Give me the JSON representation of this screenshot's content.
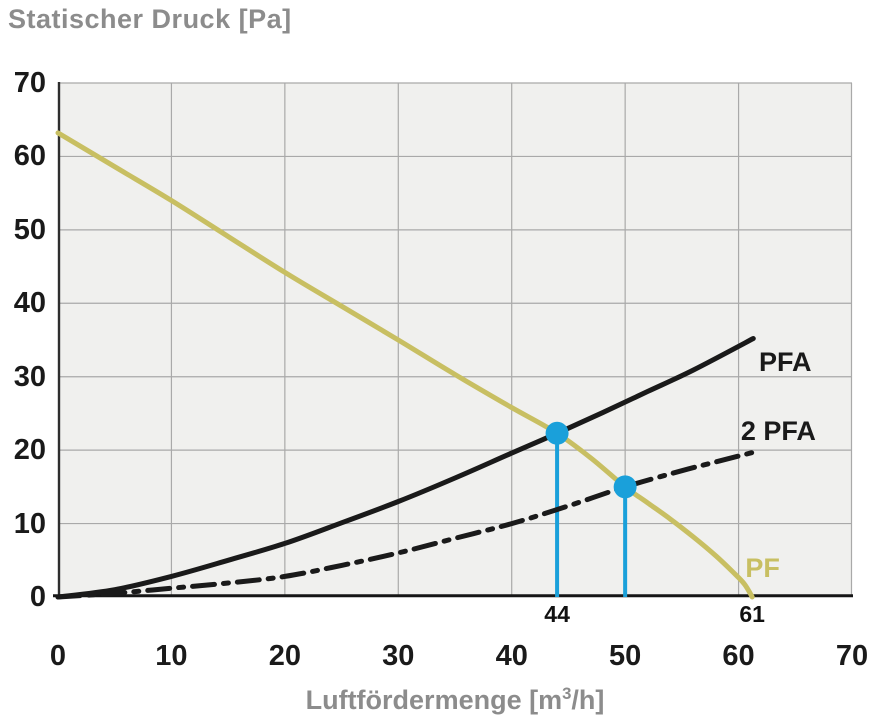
{
  "title": "Statischer Druck [Pa]",
  "x_axis_label": {
    "prefix": "Luftfördermenge [m",
    "sup": "3",
    "suffix": "/h]"
  },
  "chart_data": {
    "type": "line",
    "title": "Statischer Druck [Pa]",
    "xlabel": "Luftfördermenge [m³/h]",
    "ylabel": "Statischer Druck [Pa]",
    "xlim": [
      0,
      70
    ],
    "ylim": [
      0,
      70
    ],
    "x_ticks": [
      0,
      10,
      20,
      30,
      40,
      50,
      60,
      70
    ],
    "y_ticks": [
      0,
      10,
      20,
      30,
      40,
      50,
      60,
      70
    ],
    "grid": true,
    "legend_position": "inline-curve-labels",
    "style": {
      "plot_background": "#f0f0ee",
      "grid_color": "#a9a9a9",
      "axis_color": "#161616",
      "marker_color": "#1aa0da"
    },
    "series": [
      {
        "name": "PF",
        "description": "fan curve",
        "color": "#c8bf62",
        "line_style": "solid",
        "points": [
          [
            0,
            63.2
          ],
          [
            5,
            58.6
          ],
          [
            10,
            54.0
          ],
          [
            15,
            49.1
          ],
          [
            20,
            44.2
          ],
          [
            25,
            39.6
          ],
          [
            30,
            35.0
          ],
          [
            35,
            30.3
          ],
          [
            40,
            25.8
          ],
          [
            44,
            22.3
          ],
          [
            47,
            18.9
          ],
          [
            50,
            15.0
          ],
          [
            52,
            12.8
          ],
          [
            54,
            10.6
          ],
          [
            56,
            8.2
          ],
          [
            58,
            5.6
          ],
          [
            59.5,
            3.4
          ],
          [
            60.5,
            1.8
          ],
          [
            61.2,
            0
          ]
        ]
      },
      {
        "name": "PFA",
        "description": "device characteristic curve",
        "color": "#1a1a1a",
        "line_style": "solid",
        "points": [
          [
            0,
            0
          ],
          [
            5,
            1.0
          ],
          [
            10,
            2.8
          ],
          [
            15,
            5.0
          ],
          [
            20,
            7.3
          ],
          [
            25,
            10.1
          ],
          [
            30,
            13.0
          ],
          [
            35,
            16.2
          ],
          [
            40,
            19.6
          ],
          [
            44,
            22.3
          ],
          [
            48,
            25.1
          ],
          [
            52,
            28.0
          ],
          [
            56,
            30.9
          ],
          [
            61.3,
            35.2
          ]
        ]
      },
      {
        "name": "2 PFA",
        "description": "device characteristic curve (two units)",
        "color": "#1a1a1a",
        "line_style": "dash-dot",
        "points": [
          [
            0,
            0
          ],
          [
            5,
            0.5
          ],
          [
            10,
            1.2
          ],
          [
            15,
            1.9
          ],
          [
            20,
            2.8
          ],
          [
            25,
            4.3
          ],
          [
            30,
            6.0
          ],
          [
            35,
            8.0
          ],
          [
            40,
            10.0
          ],
          [
            45,
            12.4
          ],
          [
            50,
            15.0
          ],
          [
            55,
            17.2
          ],
          [
            58,
            18.4
          ],
          [
            61.3,
            19.7
          ]
        ]
      }
    ],
    "operating_points": [
      {
        "x": 44,
        "y": 22.3,
        "intersection": "PF × PFA"
      },
      {
        "x": 50,
        "y": 15.0,
        "intersection": "PF × 2 PFA"
      }
    ],
    "x_annotations": [
      {
        "label": "44",
        "x": 44
      },
      {
        "label": "61",
        "x": 61.2
      }
    ],
    "curve_labels": [
      {
        "text": "PFA",
        "x": 61.8,
        "y": 32.0,
        "color": "#1a1a1a"
      },
      {
        "text": "2 PFA",
        "x": 60.2,
        "y": 22.6,
        "color": "#1a1a1a"
      },
      {
        "text": "PF",
        "x": 60.6,
        "y": 4.0,
        "color": "#c8bf62"
      }
    ]
  }
}
